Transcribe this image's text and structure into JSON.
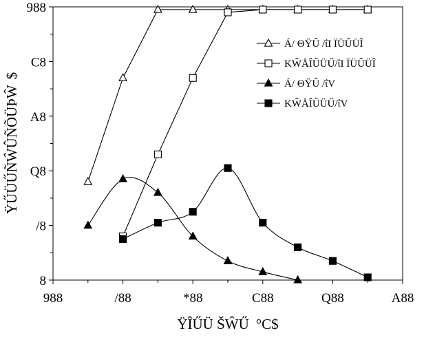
{
  "chart_data": {
    "type": "line",
    "title": "",
    "xlabel": "ŸÎŰÜ ŠŴŰ",
    "xlabel_unit": "°C$",
    "ylabel": "ŸŰÜŰÑŴÛÑÕÜÞŴ",
    "ylabel_unit": "$",
    "xlim": [
      100,
      600
    ],
    "ylim": [
      0,
      100
    ],
    "x_tick_labels": [
      "988",
      "/88",
      "*88",
      "C88",
      "Q88",
      "A88"
    ],
    "y_tick_labels": [
      "8",
      "/8",
      "Q8",
      "A8",
      "C8",
      "988"
    ],
    "grid": false,
    "legend_position": "right",
    "series": [
      {
        "name": "Á/ ΘŸÛ /ΐΙ ÏÜÛÜÎ",
        "marker": "triangle-open",
        "x": [
          150,
          200,
          250,
          300,
          350,
          400,
          450,
          500,
          550
        ],
        "y": [
          36,
          74,
          99,
          99,
          99,
          99,
          99,
          99,
          99
        ]
      },
      {
        "name": "ΚŴÅÎÛÜŰ/ΐΙ ÏÜÛÜÎ",
        "marker": "square-open",
        "x": [
          200,
          250,
          300,
          350,
          400,
          450,
          500,
          550
        ],
        "y": [
          16,
          46,
          74,
          98,
          99,
          99,
          99,
          99
        ]
      },
      {
        "name": "Á/ ΘŸÛ /ΐV",
        "marker": "triangle-filled",
        "x": [
          150,
          200,
          250,
          300,
          350,
          400,
          450
        ],
        "y": [
          20,
          37,
          32,
          16,
          7,
          3,
          0
        ]
      },
      {
        "name": "ΚŴÅÎÛÜŰ/ΐV",
        "marker": "square-filled",
        "x": [
          200,
          250,
          300,
          350,
          400,
          450,
          500,
          550
        ],
        "y": [
          15,
          21,
          25,
          41,
          21,
          12,
          7,
          1
        ]
      }
    ]
  }
}
